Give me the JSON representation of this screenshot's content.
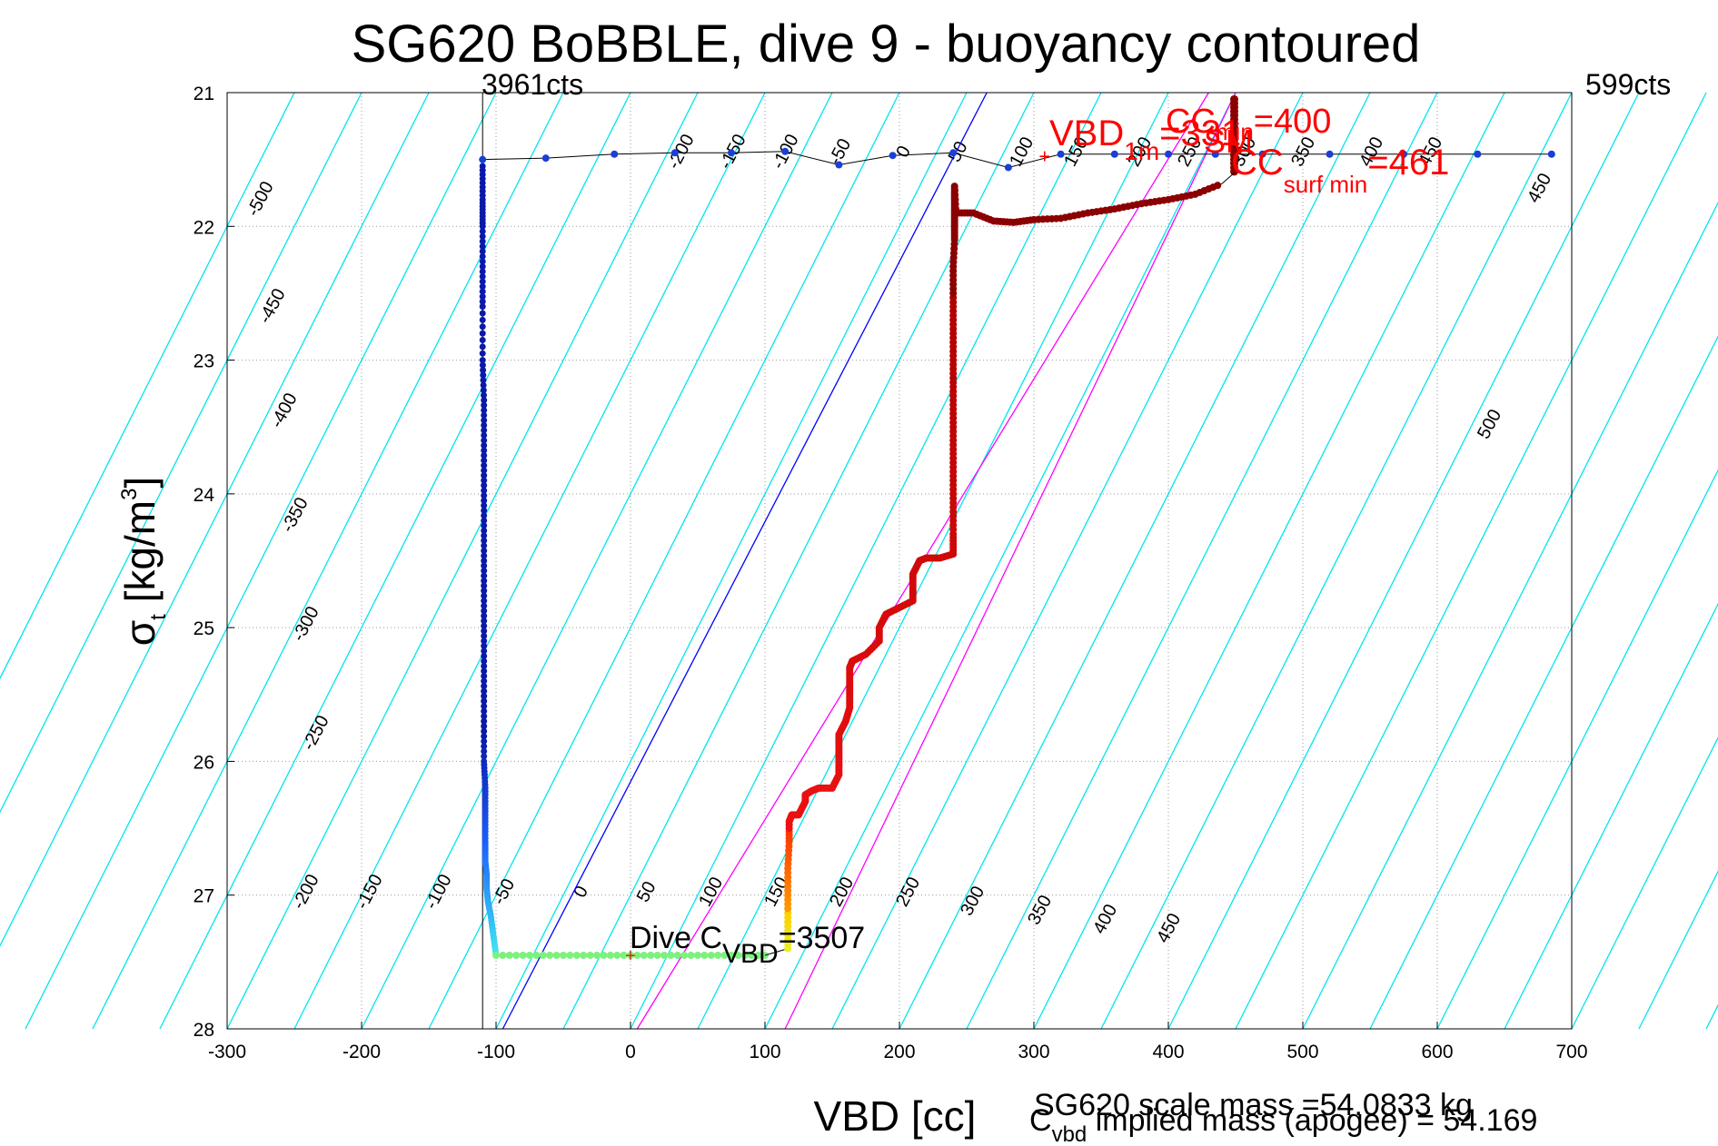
{
  "chart_data": {
    "type": "scatter",
    "title": "SG620 BoBBLE, dive 9 - buoyancy contoured",
    "xlabel": "VBD [cc]",
    "ylabel_main": "σ",
    "ylabel_sub": "t",
    "ylabel_units": " [kg/m",
    "ylabel_sup": "3",
    "ylabel_close": "]",
    "xlim": [
      -300,
      700
    ],
    "ylim": [
      21,
      28
    ],
    "y_reversed": true,
    "grid": true,
    "x_ticks": [
      -300,
      -200,
      -100,
      0,
      100,
      200,
      300,
      400,
      500,
      600,
      700
    ],
    "y_ticks": [
      21,
      22,
      23,
      24,
      25,
      26,
      27,
      28
    ],
    "counts_left": "3961cts",
    "counts_right": "599cts",
    "vbd_min_line_x": -110,
    "contour_slope_cc_per_sigma": 50,
    "contour_spacing_cc": 50,
    "contour_labels_upper": [
      "-500",
      "-450",
      "-400",
      "-350",
      "-300",
      "-250",
      "-200",
      "-150",
      "-100",
      "-50",
      "0",
      "50",
      "100",
      "150",
      "200",
      "250",
      "300",
      "350",
      "400",
      "450",
      "500"
    ],
    "contour_labels_top": [
      "-200",
      "-150",
      "-100",
      "-50",
      "0",
      "50",
      "100",
      "150",
      "200",
      "250",
      "300",
      "350",
      "400",
      "450"
    ],
    "contour_labels_bottom": [
      "-200",
      "-150",
      "-100",
      "-50",
      "0",
      "50",
      "100",
      "150",
      "200",
      "250",
      "300",
      "350",
      "400",
      "450"
    ],
    "colors": {
      "contour": "#00e5ee",
      "blue_line": "#0000ff",
      "magenta_line": "#ff00ff",
      "descent_dark": "#00008b",
      "climb_dark": "#8b0000",
      "red_text": "#ff0000",
      "grid": "#999999"
    },
    "reference_lines": [
      {
        "color": "blue",
        "x_at_y28": -95,
        "x_at_y21": 265
      },
      {
        "color": "magenta",
        "x_at_y28": 5,
        "x_at_y21": 430
      },
      {
        "color": "magenta",
        "x_at_y28": 115,
        "x_at_y21": 450
      }
    ],
    "surface_points": {
      "x": [
        -110,
        -63,
        -12,
        33,
        75,
        115,
        155,
        195,
        240,
        281,
        320,
        360,
        400,
        435,
        470,
        520,
        575,
        630,
        685
      ],
      "y": [
        21.5,
        21.49,
        21.46,
        21.45,
        21.45,
        21.44,
        21.54,
        21.47,
        21.45,
        21.56,
        21.46,
        21.46,
        21.46,
        21.46,
        21.46,
        21.46,
        21.46,
        21.46,
        21.46
      ]
    },
    "descent": {
      "x": [
        -110,
        -110,
        -110,
        -110,
        -110,
        -110,
        -109,
        -109,
        -109,
        -109,
        -109,
        -109,
        -109,
        -109,
        -109,
        -109,
        -108,
        -108,
        -108,
        -108,
        -107,
        -107,
        -106,
        -104,
        -102,
        -100
      ],
      "y": [
        21.55,
        21.8,
        22.0,
        22.3,
        22.6,
        23.0,
        23.3,
        23.6,
        23.9,
        24.2,
        24.5,
        24.8,
        25.1,
        25.4,
        25.7,
        26.0,
        26.2,
        26.4,
        26.6,
        26.75,
        26.85,
        26.95,
        27.05,
        27.15,
        27.3,
        27.45
      ]
    },
    "apogee_x": [
      -100,
      -60,
      -20,
      20,
      60,
      100
    ],
    "apogee_y": 27.45,
    "climb": {
      "x": [
        117,
        117,
        117,
        117,
        118,
        118,
        120,
        125,
        130,
        130,
        135,
        140,
        150,
        155,
        155,
        155,
        155,
        160,
        163,
        163,
        163,
        163,
        165,
        175,
        185,
        185,
        190,
        200,
        210,
        210,
        210,
        215,
        220,
        230,
        240,
        240,
        240,
        240,
        240,
        240,
        240,
        240,
        240,
        240,
        240,
        240,
        241,
        241,
        241,
        241,
        241,
        242,
        255,
        270,
        285,
        300,
        320,
        340,
        360,
        380,
        400,
        420,
        440
      ],
      "y": [
        27.4,
        27.2,
        27.0,
        26.8,
        26.6,
        26.45,
        26.4,
        26.4,
        26.3,
        26.25,
        26.22,
        26.2,
        26.2,
        26.1,
        26.0,
        25.9,
        25.8,
        25.7,
        25.6,
        25.5,
        25.4,
        25.3,
        25.25,
        25.2,
        25.1,
        25.0,
        24.9,
        24.85,
        24.8,
        24.7,
        24.6,
        24.5,
        24.48,
        24.48,
        24.45,
        24.3,
        24.1,
        23.9,
        23.7,
        23.5,
        23.3,
        23.1,
        22.9,
        22.7,
        22.5,
        22.3,
        22.1,
        22.0,
        21.9,
        21.8,
        21.7,
        21.9,
        21.9,
        21.96,
        21.97,
        21.95,
        21.94,
        21.9,
        21.87,
        21.83,
        21.8,
        21.76,
        21.68
      ]
    },
    "climb_top_x": 449,
    "climb_top_y": [
      21.05,
      21.2,
      21.35,
      21.5,
      21.6
    ],
    "annotations": {
      "dive_c_vbd": {
        "text_main": "Dive C",
        "text_sub": "VBD",
        "text_tail": "=3507",
        "x": 0,
        "y": 27.45
      },
      "vbd_1m": {
        "text_main": "VBD",
        "text_sub": "1m",
        "text_tail": "=331",
        "x": 308,
        "y": 21.48
      },
      "cc_min": {
        "text_main": "CC",
        "text_sub": "min",
        "text_tail": "=400"
      },
      "sm": {
        "text_main": "SM"
      },
      "cc_surf_min": {
        "text_main": "CC",
        "text_sub": "surf min",
        "text_tail": "=461"
      },
      "scale_mass": "SG620 scale mass =54.0833 kg",
      "implied_mass_main": "C",
      "implied_mass_sub": "vbd",
      "implied_mass_tail": " implied mass (apogee) = 54.169"
    }
  }
}
